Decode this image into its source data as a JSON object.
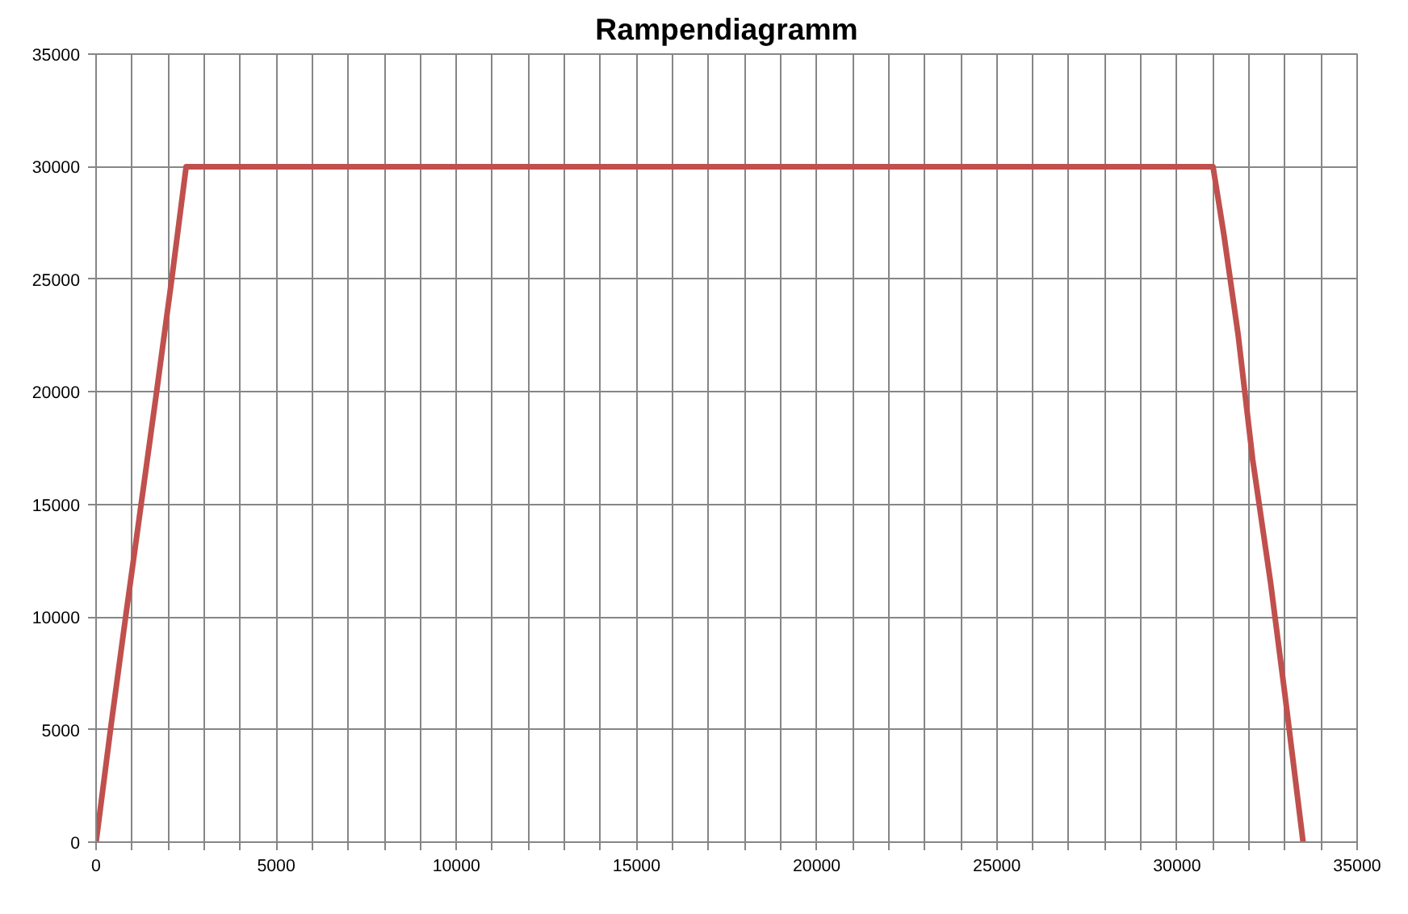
{
  "chart_data": {
    "type": "line",
    "title": "Rampendiagramm",
    "x": [
      0,
      400,
      820,
      1250,
      1680,
      2100,
      2500,
      31000,
      31300,
      31700,
      32100,
      32600,
      33000,
      33500
    ],
    "series": [
      {
        "color": "#c0504d",
        "values": [
          0,
          5000,
          10000,
          15000,
          20000,
          25000,
          30000,
          30000,
          27000,
          22500,
          17000,
          11500,
          6500,
          0
        ]
      }
    ],
    "xlim": [
      0,
      35000
    ],
    "xticks": [
      0,
      {
        "value": 1000,
        "label": null
      },
      {
        "value": 2000,
        "label": null
      },
      {
        "value": 3000,
        "label": null
      },
      {
        "value": 4000,
        "label": null
      },
      5000,
      {
        "value": 6000,
        "label": null
      },
      {
        "value": 7000,
        "label": null
      },
      {
        "value": 8000,
        "label": null
      },
      {
        "value": 9000,
        "label": null
      },
      10000,
      {
        "value": 11000,
        "label": null
      },
      {
        "value": 12000,
        "label": null
      },
      {
        "value": 13000,
        "label": null
      },
      {
        "value": 14000,
        "label": null
      },
      15000,
      {
        "value": 16000,
        "label": null
      },
      {
        "value": 17000,
        "label": null
      },
      {
        "value": 18000,
        "label": null
      },
      {
        "value": 19000,
        "label": null
      },
      20000,
      {
        "value": 21000,
        "label": null
      },
      {
        "value": 22000,
        "label": null
      },
      {
        "value": 23000,
        "label": null
      },
      {
        "value": 24000,
        "label": null
      },
      25000,
      {
        "value": 26000,
        "label": null
      },
      {
        "value": 27000,
        "label": null
      },
      {
        "value": 28000,
        "label": null
      },
      {
        "value": 29000,
        "label": null
      },
      30000,
      {
        "value": 31000,
        "label": null
      },
      {
        "value": 32000,
        "label": null
      },
      {
        "value": 33000,
        "label": null
      },
      {
        "value": 34000,
        "label": null
      },
      35000
    ],
    "ylim": [
      0,
      35000
    ],
    "yticks": [
      0,
      5000,
      10000,
      15000,
      20000,
      25000,
      30000,
      35000
    ],
    "grid": true,
    "marker": "none",
    "line_style": "solid"
  }
}
